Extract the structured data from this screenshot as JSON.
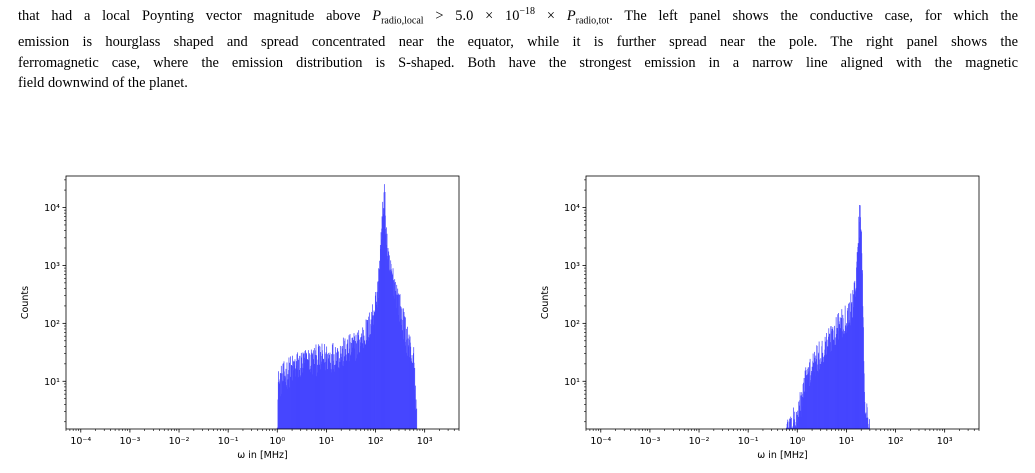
{
  "caption": {
    "line1_a": "that had a local Poynting vector magnitude above ",
    "line1_p_local": "P",
    "line1_p_local_sub": "radio,local",
    "line1_b": " > 5.0 × 10",
    "line1_exp": "−18",
    "line1_c": " × ",
    "line1_p_tot": "P",
    "line1_p_tot_sub": "radio,tot",
    "line1_d": ". The left panel shows the conductive case, for which the",
    "line2": "emission is hourglass shaped and spread concentrated near the equator, while it is further spread near the pole. The right panel shows the",
    "line3": "ferromagnetic case, where the emission distribution is S-shaped. Both have the strongest emission in a narrow line aligned with the magnetic",
    "line4": "field downwind of the planet."
  },
  "chart_data": [
    {
      "type": "bar",
      "panel": "left",
      "title": "",
      "xlabel": "ω in [MHz]",
      "ylabel": "Counts",
      "xscale": "log",
      "yscale": "log",
      "xlim": [
        5e-05,
        5000
      ],
      "ylim": [
        1.5,
        35000
      ],
      "xticks": [
        "10⁻⁴",
        "10⁻³",
        "10⁻²",
        "10⁻¹",
        "10⁰",
        "10¹",
        "10²",
        "10³"
      ],
      "yticks": [
        "10¹",
        "10²",
        "10³",
        "10⁴"
      ],
      "color": "#4646ff",
      "histogram_envelope": [
        {
          "x": 1.0,
          "y": 2
        },
        {
          "x": 1.05,
          "y": 12
        },
        {
          "x": 1.5,
          "y": 18
        },
        {
          "x": 2.5,
          "y": 25
        },
        {
          "x": 5,
          "y": 30
        },
        {
          "x": 10,
          "y": 35
        },
        {
          "x": 20,
          "y": 40
        },
        {
          "x": 40,
          "y": 55
        },
        {
          "x": 70,
          "y": 100
        },
        {
          "x": 110,
          "y": 400
        },
        {
          "x": 150,
          "y": 25000
        },
        {
          "x": 180,
          "y": 1500
        },
        {
          "x": 250,
          "y": 600
        },
        {
          "x": 400,
          "y": 100
        },
        {
          "x": 600,
          "y": 30
        },
        {
          "x": 700,
          "y": 2
        }
      ]
    },
    {
      "type": "bar",
      "panel": "right",
      "title": "",
      "xlabel": "ω in [MHz]",
      "ylabel": "Counts",
      "xscale": "log",
      "yscale": "log",
      "xlim": [
        5e-05,
        5000
      ],
      "ylim": [
        1.5,
        35000
      ],
      "xticks": [
        "10⁻⁴",
        "10⁻³",
        "10⁻²",
        "10⁻¹",
        "10⁰",
        "10¹",
        "10²",
        "10³"
      ],
      "yticks": [
        "10¹",
        "10²",
        "10³",
        "10⁴"
      ],
      "color": "#4646ff",
      "histogram_envelope": [
        {
          "x": 0.6,
          "y": 2
        },
        {
          "x": 1.0,
          "y": 3
        },
        {
          "x": 1.5,
          "y": 15
        },
        {
          "x": 3,
          "y": 40
        },
        {
          "x": 6,
          "y": 100
        },
        {
          "x": 10,
          "y": 180
        },
        {
          "x": 14,
          "y": 300
        },
        {
          "x": 17,
          "y": 2000
        },
        {
          "x": 19,
          "y": 17000
        },
        {
          "x": 21,
          "y": 1500
        },
        {
          "x": 24,
          "y": 4
        },
        {
          "x": 30,
          "y": 2
        }
      ]
    }
  ]
}
